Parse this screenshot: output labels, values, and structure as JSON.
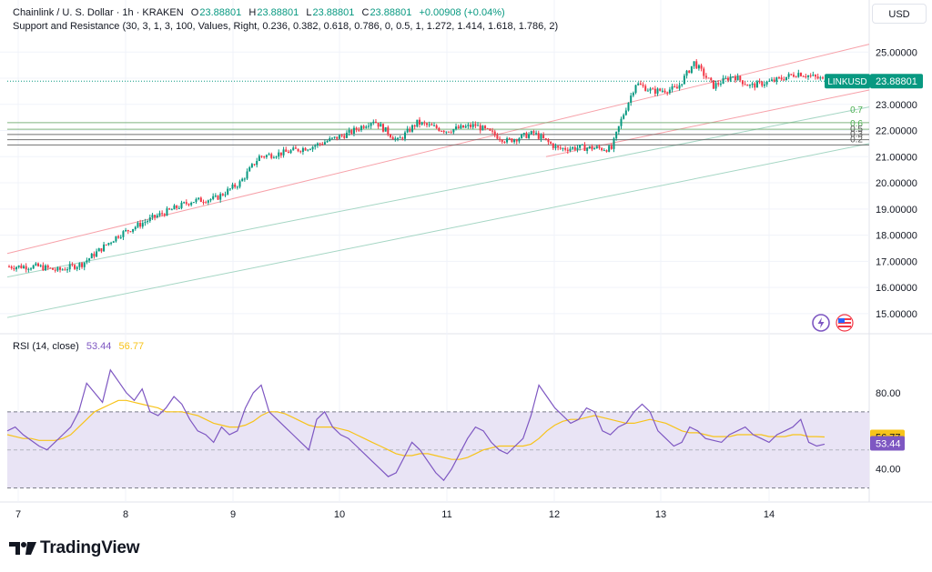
{
  "header": {
    "symbol_title": "Chainlink / U. S. Dollar · 1h · KRAKEN",
    "o_label": "O",
    "o_value": "23.88801",
    "h_label": "H",
    "h_value": "23.88801",
    "l_label": "L",
    "l_value": "23.88801",
    "c_label": "C",
    "c_value": "23.88801",
    "change": "+0.00908 (+0.04%)",
    "indicator": "Support and Resistance (30, 3, 1, 3, 100, Values, Right, 0.236, 0.382, 0.618, 0.786, 0, 0.5, 1, 1.272, 1.414, 1.618, 1.786, 2)",
    "currency": "USD"
  },
  "rsi_header": {
    "label": "RSI (14, close)",
    "rsi_value": "53.44",
    "ma_value": "56.77"
  },
  "branding": {
    "name": "TradingView"
  },
  "icons": [
    "lightning-icon",
    "flag-icon"
  ],
  "colors": {
    "up": "#089981",
    "down": "#f23645",
    "rsi": "#7e57c2",
    "rsi_ma": "#f7c31a",
    "band_fill": "#e9e4f5",
    "resistance": "#f7a1a9",
    "support": "#a5d6c4",
    "level": "#8bc48a"
  },
  "chart_data": [
    {
      "type": "candlestick",
      "symbol": "LINKUSD",
      "last_price": "23.88801",
      "y_ticks": [
        "25.00000",
        "24.00000",
        "23.00000",
        "22.00000",
        "21.00000",
        "20.00000",
        "19.00000",
        "18.00000",
        "17.00000",
        "16.00000",
        "15.00000"
      ],
      "ylim": [
        14.3,
        25.6
      ],
      "x_ticks": [
        "7",
        "8",
        "9",
        "10",
        "11",
        "12",
        "13",
        "14"
      ],
      "fib_levels": [
        "0.7",
        "0.6",
        "0.5",
        "0.3",
        "0.2"
      ],
      "anchors": [
        {
          "t": 0,
          "v": 16.8
        },
        {
          "t": 12,
          "v": 16.8
        },
        {
          "t": 20,
          "v": 16.65
        },
        {
          "t": 30,
          "v": 16.9
        },
        {
          "t": 45,
          "v": 18.0
        },
        {
          "t": 60,
          "v": 18.7
        },
        {
          "t": 75,
          "v": 19.3
        },
        {
          "t": 85,
          "v": 19.4
        },
        {
          "t": 95,
          "v": 20.0
        },
        {
          "t": 103,
          "v": 21.0
        },
        {
          "t": 113,
          "v": 21.15
        },
        {
          "t": 125,
          "v": 21.4
        },
        {
          "t": 140,
          "v": 21.9
        },
        {
          "t": 150,
          "v": 22.4
        },
        {
          "t": 160,
          "v": 21.6
        },
        {
          "t": 168,
          "v": 22.3
        },
        {
          "t": 180,
          "v": 22.0
        },
        {
          "t": 192,
          "v": 22.2
        },
        {
          "t": 205,
          "v": 21.6
        },
        {
          "t": 216,
          "v": 21.9
        },
        {
          "t": 226,
          "v": 21.3
        },
        {
          "t": 235,
          "v": 21.35
        },
        {
          "t": 248,
          "v": 21.3
        },
        {
          "t": 252,
          "v": 22.4
        },
        {
          "t": 258,
          "v": 23.8
        },
        {
          "t": 265,
          "v": 23.5
        },
        {
          "t": 275,
          "v": 23.6
        },
        {
          "t": 282,
          "v": 24.6
        },
        {
          "t": 290,
          "v": 23.7
        },
        {
          "t": 298,
          "v": 24.1
        },
        {
          "t": 305,
          "v": 23.7
        },
        {
          "t": 315,
          "v": 23.9
        },
        {
          "t": 325,
          "v": 24.2
        },
        {
          "t": 335,
          "v": 23.95
        }
      ],
      "candle_count": 336
    },
    {
      "type": "line",
      "title": "RSI (14, close)",
      "y_ticks": [
        "80.00",
        "40.00"
      ],
      "ylim": [
        26,
        100
      ],
      "band": [
        30,
        70
      ],
      "series": [
        {
          "name": "RSI",
          "last": 53.44,
          "values": [
            60,
            62,
            58,
            55,
            52,
            50,
            54,
            58,
            62,
            70,
            85,
            80,
            75,
            92,
            86,
            80,
            76,
            82,
            70,
            68,
            72,
            78,
            74,
            66,
            60,
            58,
            54,
            62,
            58,
            60,
            72,
            80,
            84,
            70,
            66,
            62,
            58,
            54,
            50,
            66,
            70,
            62,
            58,
            56,
            52,
            48,
            44,
            40,
            36,
            38,
            46,
            54,
            50,
            44,
            38,
            34,
            40,
            48,
            56,
            62,
            60,
            54,
            50,
            48,
            52,
            56,
            68,
            84,
            78,
            72,
            68,
            64,
            66,
            72,
            70,
            60,
            58,
            62,
            64,
            70,
            74,
            70,
            60,
            56,
            52,
            54,
            62,
            60,
            56,
            55,
            54,
            58,
            60,
            62,
            58,
            56,
            54,
            58,
            60,
            62,
            66,
            54,
            52,
            53
          ]
        },
        {
          "name": "MA",
          "last": 56.77,
          "values": [
            58,
            57,
            56,
            56,
            55,
            55,
            55,
            56,
            58,
            62,
            66,
            70,
            72,
            74,
            76,
            76,
            75,
            74,
            73,
            72,
            70,
            70,
            70,
            69,
            68,
            66,
            64,
            63,
            62,
            62,
            63,
            65,
            68,
            70,
            70,
            69,
            67,
            65,
            63,
            62,
            62,
            62,
            61,
            60,
            58,
            56,
            54,
            52,
            50,
            48,
            47,
            47,
            48,
            48,
            47,
            46,
            45,
            45,
            46,
            48,
            50,
            51,
            52,
            52,
            52,
            52,
            53,
            56,
            60,
            63,
            65,
            66,
            66,
            67,
            68,
            67,
            66,
            65,
            64,
            64,
            65,
            66,
            65,
            64,
            62,
            60,
            59,
            59,
            58,
            57,
            57,
            57,
            58,
            58,
            58,
            58,
            57,
            57,
            57,
            58,
            58,
            57,
            57,
            56.77
          ]
        }
      ]
    }
  ]
}
